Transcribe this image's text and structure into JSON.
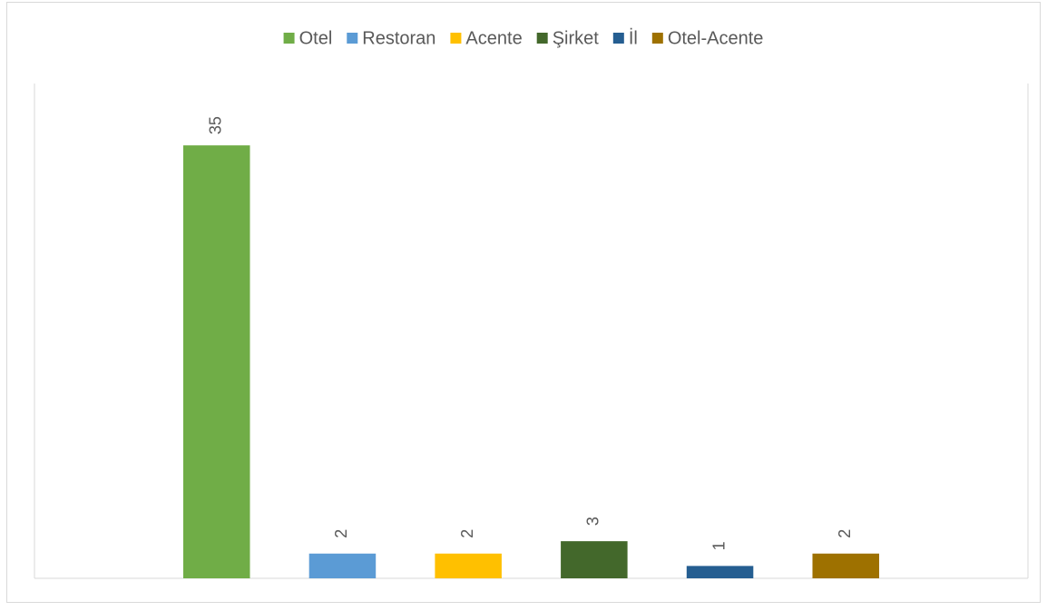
{
  "chart_data": {
    "type": "bar",
    "categories": [
      null
    ],
    "series": [
      {
        "name": "Otel",
        "color": "#70ad47",
        "values": [
          35
        ]
      },
      {
        "name": "Restoran",
        "color": "#5b9bd5",
        "values": [
          2
        ]
      },
      {
        "name": "Acente",
        "color": "#ffc000",
        "values": [
          2
        ]
      },
      {
        "name": "Şirket",
        "color": "#43682b",
        "values": [
          3
        ]
      },
      {
        "name": "İl",
        "color": "#255e91",
        "values": [
          1
        ]
      },
      {
        "name": "Otel-Acente",
        "color": "#9e7100",
        "values": [
          2
        ]
      }
    ],
    "ylim": [
      0,
      40
    ],
    "legend": "top"
  }
}
